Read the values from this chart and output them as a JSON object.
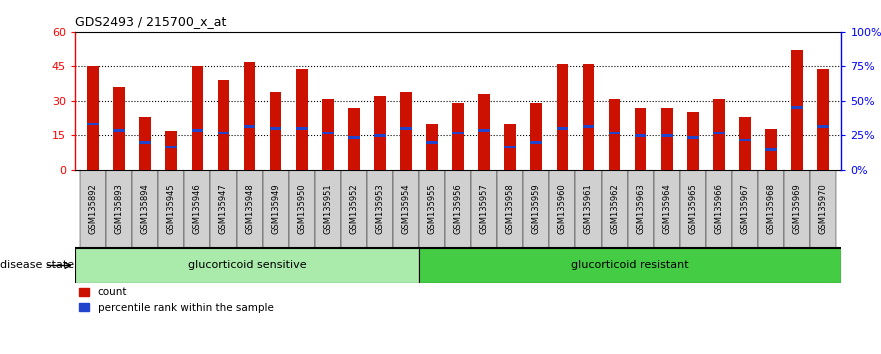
{
  "title": "GDS2493 / 215700_x_at",
  "samples": [
    "GSM135892",
    "GSM135893",
    "GSM135894",
    "GSM135945",
    "GSM135946",
    "GSM135947",
    "GSM135948",
    "GSM135949",
    "GSM135950",
    "GSM135951",
    "GSM135952",
    "GSM135953",
    "GSM135954",
    "GSM135955",
    "GSM135956",
    "GSM135957",
    "GSM135958",
    "GSM135959",
    "GSM135960",
    "GSM135961",
    "GSM135962",
    "GSM135963",
    "GSM135964",
    "GSM135965",
    "GSM135966",
    "GSM135967",
    "GSM135968",
    "GSM135969",
    "GSM135970"
  ],
  "counts": [
    45,
    36,
    23,
    17,
    45,
    39,
    47,
    34,
    44,
    31,
    27,
    32,
    34,
    20,
    29,
    33,
    20,
    29,
    46,
    46,
    31,
    27,
    27,
    25,
    31,
    23,
    18,
    52,
    44
  ],
  "percentile_values": [
    20,
    17,
    12,
    10,
    17,
    16,
    19,
    18,
    18,
    16,
    14,
    15,
    18,
    12,
    16,
    17,
    10,
    12,
    18,
    19,
    16,
    15,
    15,
    14,
    16,
    13,
    9,
    27,
    19
  ],
  "group1_count": 13,
  "group2_count": 16,
  "group1_label": "glucorticoid sensitive",
  "group2_label": "glucorticoid resistant",
  "disease_state_label": "disease state",
  "bar_color": "#cc1100",
  "percentile_color": "#2244cc",
  "group1_color": "#aaeaaa",
  "group2_color": "#44cc44",
  "ylim_left": [
    0,
    60
  ],
  "ylim_right": [
    0,
    100
  ],
  "yticks_left": [
    0,
    15,
    30,
    45,
    60
  ],
  "yticks_right": [
    0,
    25,
    50,
    75,
    100
  ],
  "xlabel_bg": "#d0d0d0",
  "plot_bg": "#ffffff"
}
